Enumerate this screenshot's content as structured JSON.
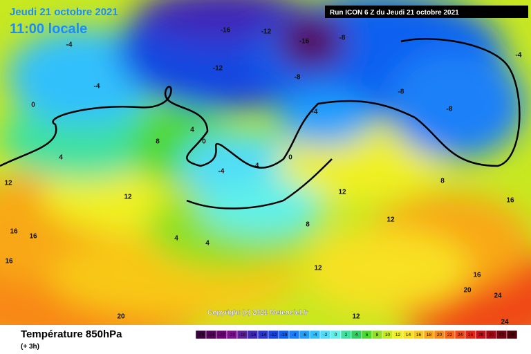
{
  "header": {
    "date": "Jeudi 21 octobre 2021",
    "time": "11:00 locale",
    "run": "Run ICON 6 Z du Jeudi 21 octobre 2021"
  },
  "copyright": "Copyright (c) 2021 Meteociel.fr",
  "footer": {
    "title": "Température 850hPa",
    "step": "(+ 3h)"
  },
  "scale": {
    "values": [
      -26,
      -24,
      -22,
      -20,
      -18,
      -16,
      -14,
      -12,
      -10,
      -8,
      -6,
      -4,
      -2,
      0,
      2,
      4,
      6,
      8,
      10,
      12,
      14,
      16,
      18,
      20,
      22,
      24,
      26,
      28,
      30,
      32,
      34
    ],
    "colors": [
      "#3a0040",
      "#55005a",
      "#6e0078",
      "#7f1090",
      "#6020a0",
      "#4028b8",
      "#2838d0",
      "#1846e0",
      "#1060f0",
      "#1a80f8",
      "#20a0fc",
      "#30c0fc",
      "#50dcf8",
      "#60f0e8",
      "#40e0a0",
      "#30d060",
      "#50d830",
      "#90e020",
      "#c8e820",
      "#f0f020",
      "#f8e020",
      "#f8c818",
      "#f8a818",
      "#f88818",
      "#f86818",
      "#f04818",
      "#e02818",
      "#c81018",
      "#a00818",
      "#780010",
      "#500008"
    ]
  },
  "isotherm_labels": [
    -4,
    -4,
    0,
    4,
    8,
    12,
    12,
    16,
    16,
    16,
    20,
    24,
    24,
    -8,
    -8,
    -8,
    -8,
    -12,
    -12,
    -16,
    -16,
    -4,
    -4,
    4,
    4,
    4,
    8,
    8,
    12,
    12,
    12,
    12,
    16,
    16,
    20,
    0,
    0,
    -4,
    -4
  ]
}
